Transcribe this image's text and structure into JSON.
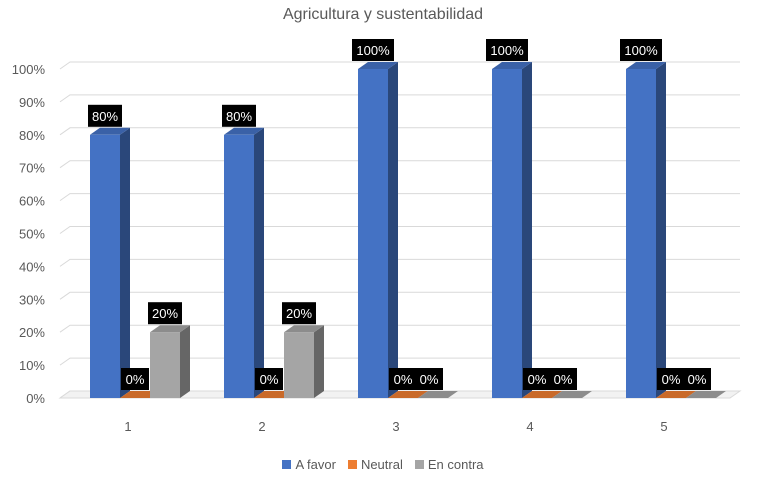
{
  "chart_data": {
    "type": "bar",
    "title": "Agricultura y sustentabilidad",
    "categories": [
      "1",
      "2",
      "3",
      "4",
      "5"
    ],
    "series": [
      {
        "name": "A favor",
        "values": [
          80,
          80,
          100,
          100,
          100
        ],
        "color": "#4472C4"
      },
      {
        "name": "Neutral",
        "values": [
          0,
          0,
          0,
          0,
          0
        ],
        "color": "#ED7D31"
      },
      {
        "name": "En contra",
        "values": [
          20,
          20,
          0,
          0,
          0
        ],
        "color": "#A5A5A5"
      }
    ],
    "data_labels": [
      [
        "80%",
        "80%",
        "100%",
        "100%",
        "100%"
      ],
      [
        "0%",
        "0%",
        "0%",
        "0%",
        "0%"
      ],
      [
        "20%",
        "20%",
        "0%",
        "0%",
        "0%"
      ]
    ],
    "y_tick_labels": [
      "0%",
      "10%",
      "20%",
      "30%",
      "40%",
      "50%",
      "60%",
      "70%",
      "80%",
      "90%",
      "100%"
    ],
    "ylim": [
      0,
      100
    ],
    "xlabel": "",
    "ylabel": "",
    "grid": true,
    "legend_position": "bottom",
    "style": "3d-column"
  }
}
